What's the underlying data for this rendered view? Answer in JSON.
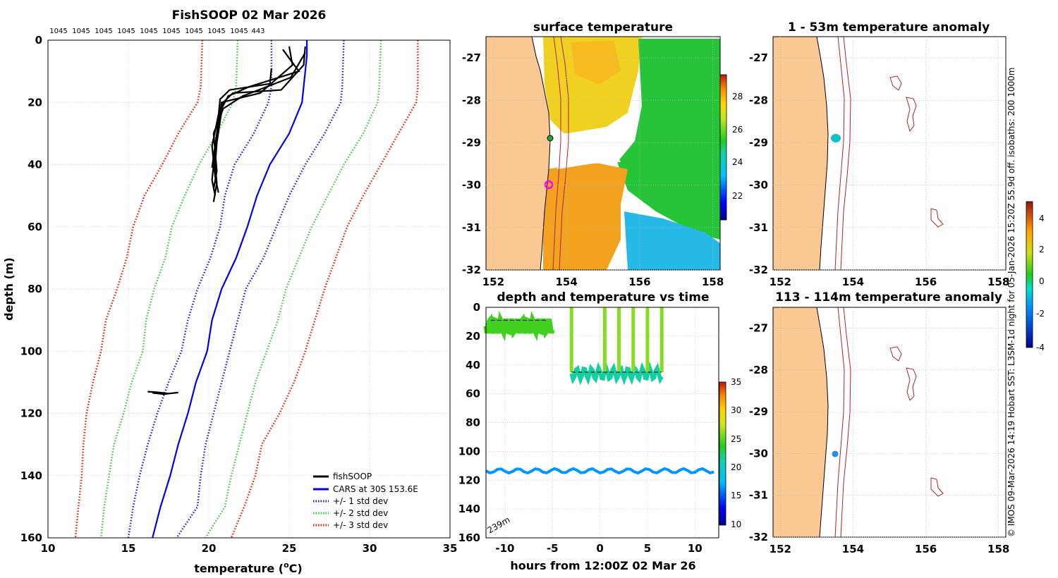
{
  "colors": {
    "land": "#F9C893",
    "fishsoop": "#000000",
    "cars": "#0000EE",
    "std1": "#1a1ad6",
    "std2": "#33cc33",
    "std3": "#e61a00",
    "isobath": "#b22222",
    "grid": "#b8b8b8"
  },
  "profile": {
    "title": "FishSOOP 02 Mar 2026",
    "count_labels": [
      "1045",
      "1045",
      "1045",
      "1045",
      "1045",
      "1045",
      "1045",
      "1045",
      "1045",
      "443"
    ],
    "xlabel": "temperature (",
    "xlabel_sup": "o",
    "xlabel_end": "C)",
    "ylabel": "depth (m)",
    "legend": [
      "fishSOOP",
      "CARS at 30S 153.6E",
      "+/- 1 std dev",
      "+/- 2 std dev",
      "+/- 3 std dev"
    ]
  },
  "sst_map": {
    "title": "surface temperature",
    "colorbar_ticks": [
      "22",
      "24",
      "26",
      "28"
    ]
  },
  "anom_top": {
    "title": "1 - 53m temperature anomaly"
  },
  "anom_bottom": {
    "title": "113 - 114m temperature anomaly"
  },
  "time_panel": {
    "title": "depth and temperature vs time",
    "xlabel": "hours from 12:00Z 02 Mar 26",
    "bottom_depth_label": "239m",
    "colorbar_ticks": [
      "10",
      "15",
      "20",
      "25",
      "30",
      "35"
    ]
  },
  "anomaly_colorbar_ticks": [
    "-4",
    "-2",
    "0",
    "2",
    "4"
  ],
  "side_caption": "© IMOS 09-Mar-2026 14:19 Hobart  SST: L3SM-1d night for 05-Jan-2026 15:20Z 55.9d off. isobaths: 200  1000m",
  "map_axes": {
    "lat_ticks": [
      "-27",
      "-28",
      "-29",
      "-30",
      "-31",
      "-32"
    ],
    "lon_ticks": [
      "152",
      "154",
      "156",
      "158"
    ]
  },
  "chart_data": [
    {
      "type": "line",
      "title": "FishSOOP 02 Mar 2026",
      "xlabel": "temperature (oC)",
      "ylabel": "depth (m)",
      "xlim": [
        10,
        35
      ],
      "ylim": [
        160,
        0
      ],
      "xticks": [
        10,
        15,
        20,
        25,
        30,
        35
      ],
      "yticks": [
        0,
        20,
        40,
        60,
        80,
        100,
        120,
        140,
        160
      ],
      "series": [
        {
          "name": "CARS at 30S 153.6E",
          "style": "solid",
          "color": "#0000EE",
          "points": [
            [
              26.1,
              0
            ],
            [
              26.1,
              5
            ],
            [
              26.0,
              10
            ],
            [
              25.9,
              15
            ],
            [
              25.8,
              20
            ],
            [
              25.0,
              30
            ],
            [
              23.8,
              40
            ],
            [
              23.0,
              50
            ],
            [
              22.4,
              60
            ],
            [
              21.7,
              70
            ],
            [
              20.8,
              80
            ],
            [
              20.2,
              90
            ],
            [
              19.9,
              100
            ],
            [
              19.2,
              110
            ],
            [
              18.7,
              120
            ],
            [
              18.1,
              130
            ],
            [
              17.6,
              140
            ],
            [
              17.0,
              150
            ],
            [
              16.5,
              160
            ]
          ]
        },
        {
          "name": "+/- 1 std dev",
          "style": "dotted",
          "color": "#1a1ad6",
          "points": [
            [
              23.9,
              0
            ],
            [
              23.9,
              15
            ],
            [
              23.7,
              20
            ],
            [
              22.8,
              30
            ],
            [
              21.6,
              40
            ],
            [
              21.0,
              50
            ],
            [
              20.7,
              60
            ],
            [
              20.1,
              70
            ],
            [
              19.3,
              80
            ],
            [
              18.7,
              90
            ],
            [
              18.3,
              100
            ],
            [
              17.5,
              110
            ],
            [
              16.8,
              120
            ],
            [
              16.2,
              130
            ],
            [
              15.7,
              140
            ],
            [
              15.3,
              150
            ],
            [
              15.0,
              160
            ]
          ]
        },
        {
          "name": "+/- 1 std dev",
          "style": "dotted",
          "color": "#1a1ad6",
          "points": [
            [
              28.4,
              0
            ],
            [
              28.3,
              15
            ],
            [
              28.2,
              20
            ],
            [
              27.2,
              30
            ],
            [
              26.0,
              40
            ],
            [
              25.0,
              50
            ],
            [
              24.2,
              60
            ],
            [
              23.4,
              70
            ],
            [
              22.3,
              80
            ],
            [
              21.8,
              90
            ],
            [
              21.3,
              100
            ],
            [
              20.8,
              110
            ],
            [
              20.3,
              120
            ],
            [
              19.8,
              130
            ],
            [
              19.5,
              140
            ],
            [
              19.3,
              150
            ],
            [
              18.0,
              160
            ]
          ]
        },
        {
          "name": "+/- 2 std dev",
          "style": "dotted",
          "color": "#33cc33",
          "points": [
            [
              21.8,
              0
            ],
            [
              21.7,
              15
            ],
            [
              21.5,
              20
            ],
            [
              20.5,
              30
            ],
            [
              19.4,
              40
            ],
            [
              18.5,
              50
            ],
            [
              17.7,
              60
            ],
            [
              17.3,
              70
            ],
            [
              16.6,
              80
            ],
            [
              16.1,
              90
            ],
            [
              15.9,
              100
            ],
            [
              15.2,
              110
            ],
            [
              14.7,
              120
            ],
            [
              14.1,
              130
            ],
            [
              13.8,
              140
            ],
            [
              13.5,
              150
            ],
            [
              13.3,
              160
            ]
          ]
        },
        {
          "name": "+/- 2 std dev",
          "style": "dotted",
          "color": "#33cc33",
          "points": [
            [
              30.7,
              0
            ],
            [
              30.6,
              15
            ],
            [
              30.5,
              20
            ],
            [
              29.6,
              30
            ],
            [
              28.4,
              40
            ],
            [
              27.4,
              50
            ],
            [
              26.4,
              60
            ],
            [
              25.6,
              70
            ],
            [
              24.8,
              80
            ],
            [
              24.3,
              90
            ],
            [
              23.6,
              100
            ],
            [
              22.9,
              110
            ],
            [
              22.4,
              120
            ],
            [
              21.9,
              130
            ],
            [
              21.4,
              140
            ],
            [
              21.0,
              150
            ],
            [
              19.8,
              160
            ]
          ]
        },
        {
          "name": "+/- 3 std dev",
          "style": "dotted",
          "color": "#e61a00",
          "points": [
            [
              19.6,
              0
            ],
            [
              19.5,
              15
            ],
            [
              19.3,
              20
            ],
            [
              18.1,
              30
            ],
            [
              17.1,
              40
            ],
            [
              16.0,
              50
            ],
            [
              15.3,
              60
            ],
            [
              14.9,
              70
            ],
            [
              14.3,
              80
            ],
            [
              13.6,
              90
            ],
            [
              13.3,
              100
            ],
            [
              12.8,
              110
            ],
            [
              12.4,
              120
            ],
            [
              12.2,
              130
            ],
            [
              12.1,
              140
            ],
            [
              11.9,
              150
            ],
            [
              11.7,
              160
            ]
          ]
        },
        {
          "name": "+/- 3 std dev",
          "style": "dotted",
          "color": "#e61a00",
          "points": [
            [
              33.0,
              0
            ],
            [
              33.0,
              15
            ],
            [
              32.9,
              20
            ],
            [
              31.8,
              30
            ],
            [
              30.7,
              40
            ],
            [
              29.6,
              50
            ],
            [
              28.6,
              60
            ],
            [
              27.9,
              70
            ],
            [
              27.2,
              80
            ],
            [
              26.6,
              90
            ],
            [
              26.0,
              100
            ],
            [
              25.3,
              110
            ],
            [
              24.4,
              120
            ],
            [
              23.3,
              130
            ],
            [
              22.9,
              140
            ],
            [
              22.2,
              150
            ],
            [
              21.4,
              160
            ]
          ]
        },
        {
          "name": "fishSOOP",
          "style": "solid",
          "color": "#000000",
          "points": [
            [
              26.0,
              2
            ],
            [
              25.9,
              8
            ],
            [
              24.5,
              16
            ],
            [
              21.5,
              17
            ],
            [
              20.9,
              20
            ],
            [
              20.7,
              26
            ],
            [
              20.5,
              33
            ],
            [
              20.4,
              40
            ],
            [
              20.5,
              46
            ],
            [
              20.3,
              52
            ]
          ]
        },
        {
          "name": "fishSOOP",
          "style": "solid",
          "color": "#000000",
          "points": [
            [
              25.0,
              2
            ],
            [
              25.2,
              8
            ],
            [
              23.2,
              17
            ],
            [
              20.8,
              20
            ],
            [
              20.6,
              27
            ],
            [
              20.4,
              35
            ],
            [
              20.2,
              45
            ],
            [
              20.4,
              50
            ]
          ]
        },
        {
          "name": "fishSOOP",
          "style": "solid",
          "color": "#000000",
          "points": [
            [
              24.6,
              3
            ],
            [
              25.6,
              10
            ],
            [
              22.5,
              15
            ],
            [
              21.2,
              18
            ],
            [
              20.6,
              24
            ],
            [
              20.2,
              34
            ],
            [
              20.4,
              44
            ],
            [
              20.6,
              49
            ]
          ]
        },
        {
          "name": "fishSOOP",
          "style": "solid",
          "color": "#000000",
          "points": [
            [
              26.0,
              4
            ],
            [
              25.1,
              12
            ],
            [
              22.1,
              18
            ],
            [
              20.9,
              22
            ],
            [
              20.3,
              30
            ],
            [
              20.5,
              42
            ],
            [
              20.3,
              48
            ]
          ]
        },
        {
          "name": "fishSOOP",
          "style": "solid",
          "color": "#000000",
          "points": [
            [
              23.9,
              9
            ],
            [
              23.8,
              14
            ],
            [
              21.3,
              16
            ],
            [
              20.7,
              19
            ],
            [
              20.5,
              30
            ],
            [
              20.2,
              41
            ]
          ]
        },
        {
          "name": "fishSOOP",
          "style": "solid",
          "color": "#000000",
          "points": [
            [
              16.2,
              113.0
            ],
            [
              16.8,
              113.2
            ],
            [
              17.5,
              113.6
            ],
            [
              18.1,
              113.3
            ],
            [
              17.2,
              113.8
            ],
            [
              16.5,
              113.4
            ]
          ]
        }
      ]
    },
    {
      "type": "scatter",
      "title": "depth and temperature vs time",
      "xlabel": "hours from 12:00Z 02 Mar 26",
      "xlim": [
        -12,
        12.5
      ],
      "ylim": [
        160,
        0
      ],
      "xticks": [
        -10,
        -5,
        0,
        5,
        10
      ],
      "yticks": [
        0,
        20,
        40,
        60,
        80,
        100,
        120,
        140,
        160
      ],
      "colorbar_range": [
        10,
        35
      ],
      "segments": [
        {
          "name": "deployment 1 near-surface",
          "hours": [
            -12,
            -5
          ],
          "depth_range": [
            8,
            18
          ],
          "temperature": 24.5
        },
        {
          "name": "deployment 2 on bottom",
          "hours": [
            -3,
            6.5
          ],
          "depth_range": [
            42,
            50
          ],
          "temperature": 21.5
        },
        {
          "name": "deployment 2 profiles to surface",
          "hours_at": [
            -3,
            0.5,
            2,
            3.5,
            5,
            6.5
          ],
          "depth_range": [
            0,
            45
          ],
          "temperature": 26
        },
        {
          "name": "deep logger",
          "hours": [
            -12,
            12
          ],
          "depth_range": [
            112,
            115
          ],
          "temperature": 16.5
        }
      ]
    }
  ]
}
